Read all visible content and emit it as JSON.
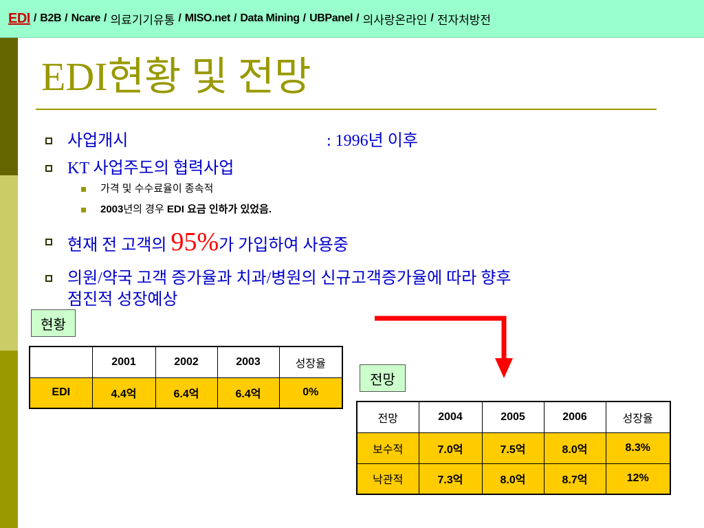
{
  "banner": {
    "active": "EDI",
    "separator": "/",
    "items": [
      "B2B",
      "Ncare",
      "의료기기유통",
      "MISO.net",
      "Data Mining",
      "UBPanel",
      "의사랑온라인",
      "전자처방전"
    ]
  },
  "title": "EDI현황 및 전망",
  "bullets": {
    "start": {
      "label": "사업개시",
      "value": ": 1996년 이후"
    },
    "kt": {
      "text": "KT 사업주도의 협력사업",
      "sub": [
        {
          "text": "가격 및 수수료율이 종속적"
        },
        {
          "parts": [
            "2003",
            "년의 경우 ",
            "EDI",
            " 요금 인하가 있었음."
          ]
        }
      ]
    },
    "current": {
      "before": "현재 전 고객의 ",
      "highlight": "95%",
      "after": "가 가입하여 사용중"
    },
    "outlook": {
      "lines": [
        "의원/약국 고객 증가율과 치과/병원의 신규고객증가율에 따라 향후",
        "점진적 성장예상"
      ]
    }
  },
  "current_status": {
    "label": "현황",
    "table": {
      "header": [
        "",
        "2001",
        "2002",
        "2003",
        "성장율"
      ],
      "rows": [
        [
          "EDI",
          "4.4억",
          "6.4억",
          "6.4억",
          "0%"
        ]
      ]
    }
  },
  "forecast": {
    "label": "전망",
    "table": {
      "header": [
        "전망",
        "2004",
        "2005",
        "2006",
        "성장율"
      ],
      "rows": [
        [
          "보수적",
          "7.0억",
          "7.5억",
          "8.0억",
          "8.3%"
        ],
        [
          "낙관적",
          "7.3억",
          "8.0억",
          "8.7억",
          "12%"
        ]
      ]
    }
  },
  "colors": {
    "banner_bg": "#99FFCC",
    "title": "#999900",
    "bullet_text": "#0000CC",
    "highlight": "#FF0000",
    "row_bg": "#FFCC00",
    "label_bg": "#CCFFCC",
    "arrow": "#FF0000",
    "stripe_dark": "#666600",
    "stripe_light": "#CCCC66",
    "stripe_mid": "#999900"
  }
}
